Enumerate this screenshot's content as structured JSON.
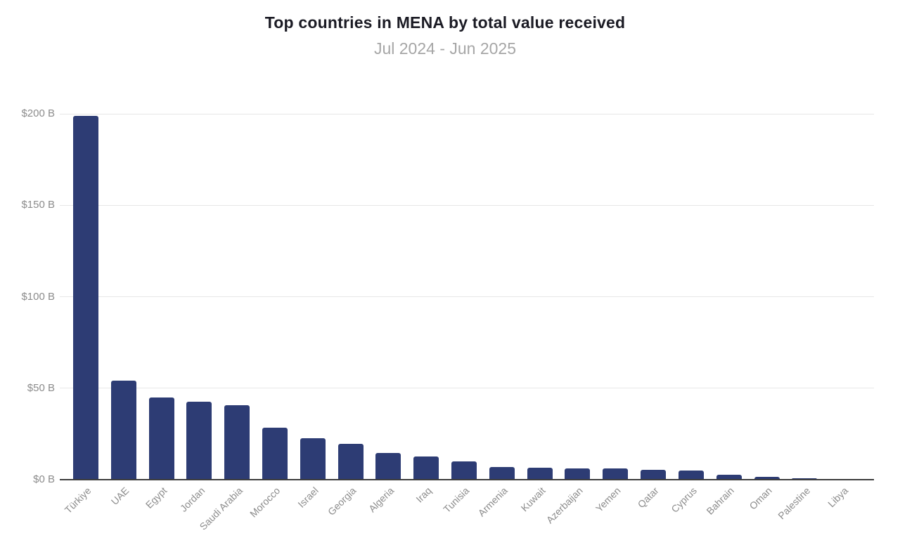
{
  "chart_data": {
    "type": "bar",
    "title": "Top countries in MENA by total value received",
    "subtitle": "Jul 2024 - Jun 2025",
    "unit": "USD billions",
    "categories": [
      "Türkiye",
      "UAE",
      "Egypt",
      "Jordan",
      "Saudi Arabia",
      "Morocco",
      "Israel",
      "Georgia",
      "Algeria",
      "Iraq",
      "Tunisia",
      "Armenia",
      "Kuwait",
      "Azerbaijan",
      "Yemen",
      "Qatar",
      "Cyprus",
      "Bahrain",
      "Oman",
      "Palestine",
      "Libya"
    ],
    "values": [
      199,
      54,
      45,
      42.5,
      40.5,
      28.5,
      22.5,
      19.5,
      14.5,
      12.5,
      10,
      7,
      6.4,
      6,
      6,
      5.4,
      4.9,
      2.7,
      1.7,
      0.8,
      0.2
    ],
    "ylim": [
      0,
      200
    ],
    "yticks": [
      {
        "value": 0,
        "label": "$0 B"
      },
      {
        "value": 50,
        "label": "$50 B"
      },
      {
        "value": 100,
        "label": "$100 B"
      },
      {
        "value": 150,
        "label": "$150 B"
      },
      {
        "value": 200,
        "label": "$200 B"
      }
    ],
    "grid": true,
    "legend": false,
    "colors": {
      "bar": "#2d3c74",
      "axis": "#3d3d3d",
      "grid": "#e7e7e7",
      "tick_label": "#8c8c8c",
      "title": "#1b1b24",
      "subtitle": "#a6a6a6"
    }
  }
}
